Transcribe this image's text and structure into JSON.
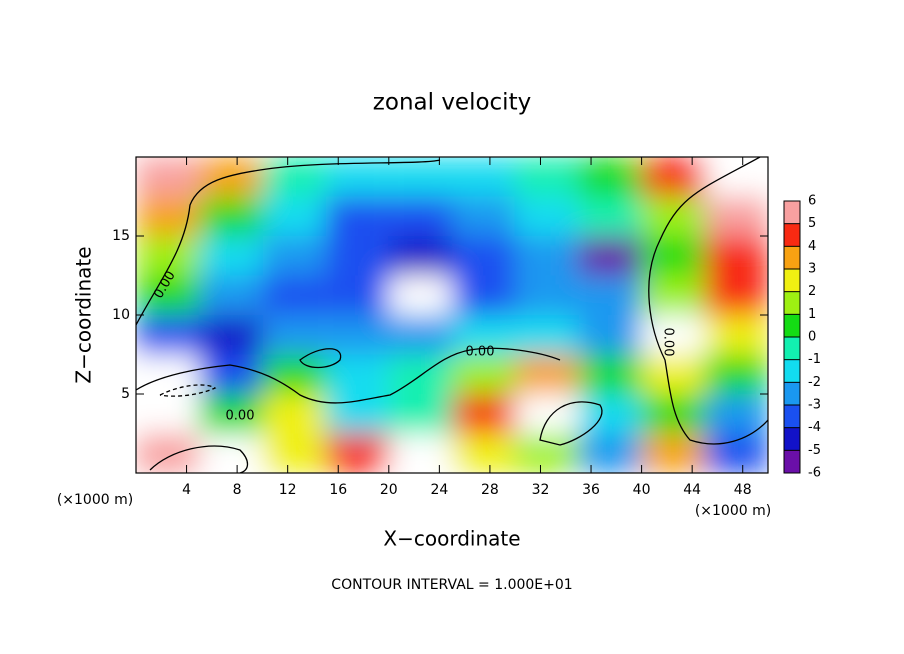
{
  "chart_data": {
    "type": "contour",
    "title": "zonal velocity",
    "xlabel": "X−coordinate",
    "ylabel": "Z−coordinate",
    "x_unit_label": "(×1000 m)",
    "x_unit_label_right": "(×1000 m)",
    "footer": "CONTOUR INTERVAL = 1.000E+01",
    "xlim": [
      0,
      50
    ],
    "ylim": [
      0,
      20
    ],
    "xticks": [
      4,
      8,
      12,
      16,
      20,
      24,
      28,
      32,
      36,
      40,
      44,
      48
    ],
    "yticks": [
      5,
      10,
      15
    ],
    "x": [
      0,
      5,
      10,
      15,
      20,
      25,
      30,
      35,
      40,
      45,
      50
    ],
    "y": [
      20,
      17.5,
      15,
      12.5,
      10,
      7.5,
      5,
      2.5,
      0
    ],
    "z": [
      [
        5,
        3,
        -1,
        -2,
        -2,
        -2,
        -1,
        0,
        4,
        7
      ],
      [
        3,
        0,
        -2,
        -3.5,
        -4,
        -3,
        -2,
        -1,
        1,
        5
      ],
      [
        1,
        -2,
        -3,
        -4,
        -4.5,
        -4,
        -3,
        -5.5,
        0,
        4
      ],
      [
        0,
        -3,
        -4,
        -4,
        -7,
        -4,
        -3,
        -3,
        1,
        4
      ],
      [
        -4,
        -5,
        -3,
        -3,
        -3,
        -2,
        -2,
        -3,
        7,
        2
      ],
      [
        -7,
        -4,
        0,
        -2,
        -1,
        1,
        3,
        0,
        2,
        0
      ],
      [
        7,
        0,
        2,
        -2,
        -1,
        4,
        7,
        -2,
        0,
        -3
      ],
      [
        5,
        7,
        2,
        4,
        7,
        2,
        1,
        -3,
        3,
        -4
      ]
    ],
    "colorbar_ticks": [
      6,
      5,
      4,
      3,
      2,
      1,
      0,
      -1,
      -2,
      -3,
      -4,
      -5,
      -6
    ],
    "colorbar_lim": [
      -6,
      6
    ],
    "colors": [
      "#6a0fa8",
      "#1212c8",
      "#1a50f0",
      "#1a98f0",
      "#12dcf0",
      "#12f0b0",
      "#14dc14",
      "#9ef012",
      "#f0f012",
      "#f8a212",
      "#f82a12",
      "#f8a0a0"
    ],
    "out_of_range_color": "#ffffff",
    "contour_labels": [
      "0.00",
      "0.00",
      "0.00",
      "0.00"
    ]
  }
}
